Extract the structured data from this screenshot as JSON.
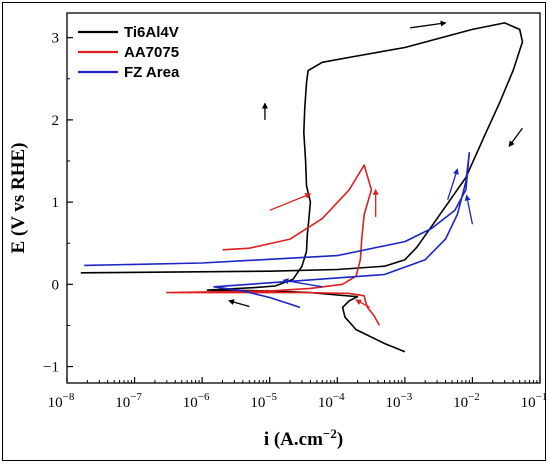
{
  "chart_data": {
    "type": "line",
    "title": "",
    "xlabel": "i (A.cm",
    "xlabel_sup": "−2",
    "xlabel_close": ")",
    "ylabel": "E (V vs RHE)",
    "xscale": "log",
    "xlim": [
      1e-08,
      0.1
    ],
    "ylim": [
      -1.2,
      3.3
    ],
    "xticks": [
      {
        "value": 1e-08,
        "base": "10",
        "exp": "−8"
      },
      {
        "value": 1e-07,
        "base": "10",
        "exp": "−7"
      },
      {
        "value": 1e-06,
        "base": "10",
        "exp": "−6"
      },
      {
        "value": 1e-05,
        "base": "10",
        "exp": "−5"
      },
      {
        "value": 0.0001,
        "base": "10",
        "exp": "−4"
      },
      {
        "value": 0.001,
        "base": "10",
        "exp": "−3"
      },
      {
        "value": 0.01,
        "base": "10",
        "exp": "−2"
      },
      {
        "value": 0.1,
        "base": "10",
        "exp": "−1"
      }
    ],
    "yticks": [
      {
        "value": -1,
        "label": "−1"
      },
      {
        "value": 0,
        "label": "0"
      },
      {
        "value": 1,
        "label": "1"
      },
      {
        "value": 2,
        "label": "2"
      },
      {
        "value": 3,
        "label": "3"
      }
    ],
    "grid": false,
    "legend_position": "top-left",
    "series": [
      {
        "name": "Ti6Al4V",
        "color": "#000000",
        "points": [
          [
            0.001,
            -0.82
          ],
          [
            0.0005,
            -0.72
          ],
          [
            0.00019,
            -0.55
          ],
          [
            0.00013,
            -0.4
          ],
          [
            0.00012,
            -0.28
          ],
          [
            0.00015,
            -0.2
          ],
          [
            0.0002,
            -0.15
          ],
          [
            0.0001,
            -0.13
          ],
          [
            4e-05,
            -0.1
          ],
          [
            1e-05,
            -0.08
          ],
          [
            1.2e-06,
            -0.07
          ],
          [
            2e-06,
            -0.06
          ],
          [
            6e-06,
            -0.04
          ],
          [
            1.2e-05,
            -0.02
          ],
          [
            2.2e-05,
            0.06
          ],
          [
            3e-05,
            0.22
          ],
          [
            3.5e-05,
            0.4
          ],
          [
            3.6e-05,
            0.6
          ],
          [
            3.8e-05,
            0.8
          ],
          [
            4e-05,
            1.0
          ],
          [
            3.5e-05,
            1.2
          ],
          [
            3.4e-05,
            1.5
          ],
          [
            3.2e-05,
            1.85
          ],
          [
            3.3e-05,
            2.15
          ],
          [
            3.5e-05,
            2.45
          ],
          [
            3.7e-05,
            2.6
          ],
          [
            6e-05,
            2.7
          ],
          [
            0.00015,
            2.76
          ],
          [
            0.001,
            2.88
          ],
          [
            0.01,
            3.1
          ],
          [
            0.03,
            3.18
          ],
          [
            0.05,
            3.1
          ],
          [
            0.055,
            2.95
          ],
          [
            0.04,
            2.6
          ],
          [
            0.025,
            2.2
          ],
          [
            0.015,
            1.8
          ],
          [
            0.008,
            1.3
          ],
          [
            0.003,
            0.8
          ],
          [
            0.0015,
            0.45
          ],
          [
            0.001,
            0.3
          ],
          [
            0.0005,
            0.22
          ],
          [
            0.0001,
            0.18
          ],
          [
            1e-05,
            0.16
          ],
          [
            1.6e-08,
            0.14
          ]
        ]
      },
      {
        "name": "AA7075",
        "color": "#dd1f1f",
        "points": [
          [
            0.00042,
            -0.5
          ],
          [
            0.00035,
            -0.38
          ],
          [
            0.00028,
            -0.28
          ],
          [
            0.00026,
            -0.2
          ],
          [
            0.00025,
            -0.14
          ],
          [
            0.00015,
            -0.11
          ],
          [
            3e-05,
            -0.1
          ],
          [
            3e-07,
            -0.1
          ],
          [
            1e-05,
            -0.08
          ],
          [
            4e-05,
            -0.05
          ],
          [
            0.00012,
            0.0
          ],
          [
            0.00019,
            0.1
          ],
          [
            0.00022,
            0.3
          ],
          [
            0.00023,
            0.55
          ],
          [
            0.00025,
            0.85
          ],
          [
            0.00032,
            1.15
          ],
          [
            0.00025,
            1.45
          ],
          [
            0.00015,
            1.15
          ],
          [
            6e-05,
            0.8
          ],
          [
            2e-05,
            0.55
          ],
          [
            5e-06,
            0.44
          ],
          [
            2e-06,
            0.42
          ]
        ]
      },
      {
        "name": "FZ Area",
        "color": "#1c24c4",
        "points": [
          [
            2.8e-05,
            -0.28
          ],
          [
            2e-05,
            -0.24
          ],
          [
            1e-05,
            -0.16
          ],
          [
            4e-06,
            -0.08
          ],
          [
            1.5e-06,
            -0.03
          ],
          [
            5e-06,
            0.0
          ],
          [
            5e-05,
            0.06
          ],
          [
            0.0005,
            0.12
          ],
          [
            0.002,
            0.3
          ],
          [
            0.004,
            0.55
          ],
          [
            0.006,
            0.85
          ],
          [
            0.008,
            1.25
          ],
          [
            0.009,
            1.6
          ],
          [
            0.008,
            1.15
          ],
          [
            0.0055,
            0.9
          ],
          [
            0.0025,
            0.68
          ],
          [
            0.001,
            0.52
          ],
          [
            0.0001,
            0.35
          ],
          [
            1e-06,
            0.26
          ],
          [
            1.8e-08,
            0.23
          ]
        ]
      }
    ]
  }
}
